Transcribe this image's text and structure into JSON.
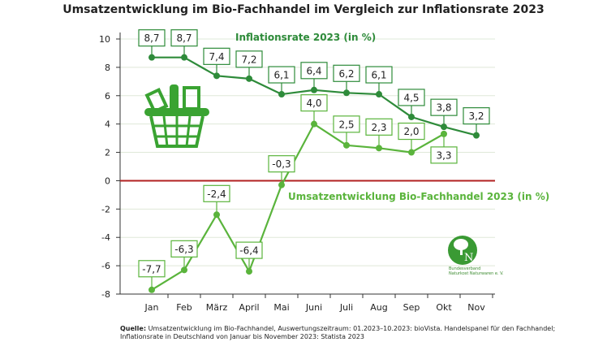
{
  "chart_data": {
    "type": "line",
    "title": "Umsatzentwicklung im Bio-Fachhandel im Vergleich zur Inflationsrate 2023",
    "categories": [
      "Jan",
      "Feb",
      "März",
      "April",
      "Mai",
      "Juni",
      "Juli",
      "Aug",
      "Sep",
      "Okt",
      "Nov"
    ],
    "ylim": [
      -8,
      10
    ],
    "yticks": [
      10,
      8,
      6,
      4,
      2,
      0,
      -2,
      -4,
      -6,
      -8
    ],
    "grid": true,
    "series": [
      {
        "name": "Inflationsrate 2023 (in %)",
        "color": "#2e8b3a",
        "values": [
          8.7,
          8.7,
          7.4,
          7.2,
          6.1,
          6.4,
          6.2,
          6.1,
          4.5,
          3.8,
          3.2
        ],
        "labels": [
          "8,7",
          "8,7",
          "7,4",
          "7,2",
          "6,1",
          "6,4",
          "6,2",
          "6,1",
          "4,5",
          "3,8",
          "3,2"
        ]
      },
      {
        "name": "Umsatzentwicklung Bio-Fachhandel 2023 (in %)",
        "color": "#5ab43c",
        "values": [
          -7.7,
          -6.3,
          -2.4,
          -6.4,
          -0.3,
          4.0,
          2.5,
          2.3,
          2.0,
          3.3,
          null
        ],
        "labels": [
          "-7,7",
          "-6,3",
          "-2,4",
          "-6,4",
          "-0,3",
          "4,0",
          "2,5",
          "2,3",
          "2,0",
          "3,3",
          null
        ]
      }
    ],
    "zero_line_color": "#b22222"
  },
  "source": {
    "label": "Quelle:",
    "line1": " Umsatzentwicklung im Bio-Fachhandel, Auswertungszeitraum: 01.2023–10.2023: bioVista. Handelspanel für den Fachhandel;",
    "line2": "Inflationsrate in Deutschland von Januar bis November 2023: Statista 2023"
  },
  "logo": {
    "text": "Bundesverband Naturkost Naturwaren e. V.",
    "line1": "Bundesverband",
    "line2": "Naturkost Naturwaren e. V."
  },
  "icons": [
    "shopping-basket-icon",
    "tree-n-logo-icon"
  ]
}
